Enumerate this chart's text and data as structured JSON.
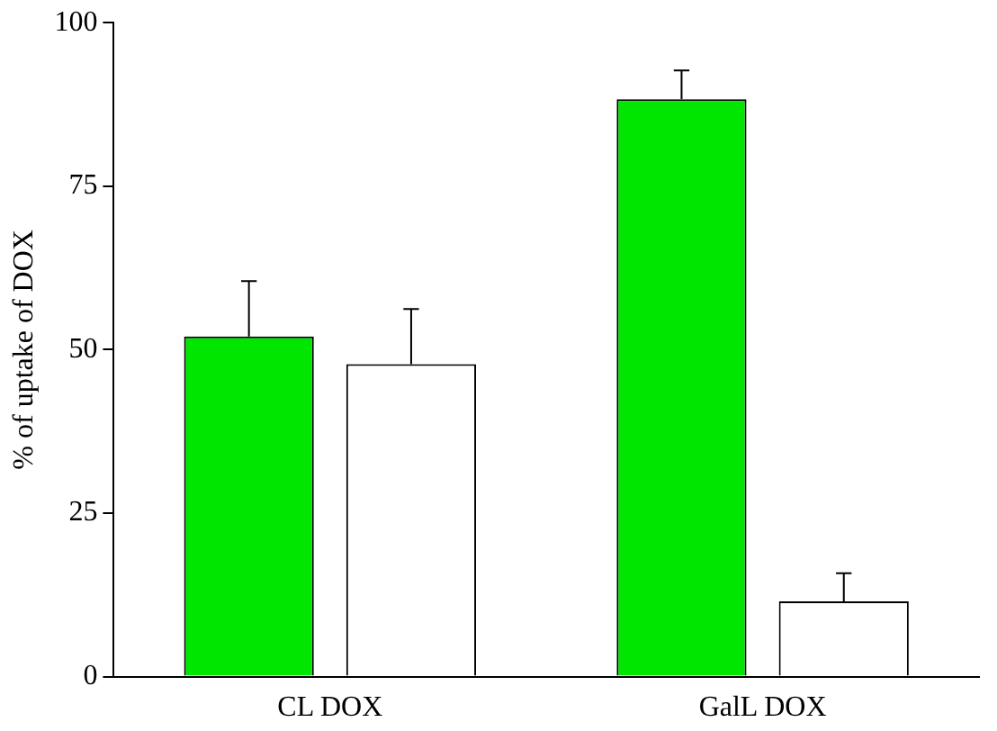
{
  "chart_data": {
    "type": "bar",
    "ylabel": "% of uptake of DOX",
    "categories": [
      "CL DOX",
      "GalL DOX"
    ],
    "series": [
      {
        "color": "#00e600",
        "values": [
          52,
          88.3
        ],
        "errors": [
          [
            52,
            60.5
          ],
          [
            88.3,
            92.7
          ]
        ]
      },
      {
        "color": "#ffffff",
        "values": [
          47.8,
          11.5
        ],
        "errors": [
          [
            47.8,
            56.2
          ],
          [
            11.5,
            15.8
          ]
        ]
      }
    ],
    "ylim": [
      0,
      100
    ],
    "yticks": [
      0,
      25,
      50,
      75,
      100
    ],
    "grid": false,
    "legend": false
  }
}
